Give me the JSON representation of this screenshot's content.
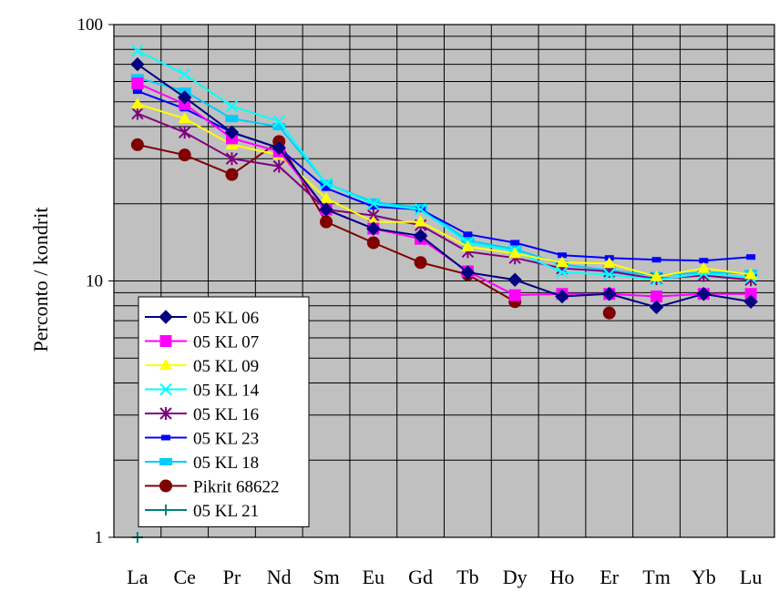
{
  "chart_data": {
    "type": "line",
    "title": "",
    "xlabel": "",
    "ylabel": "Perconto / kondrit",
    "yscale": "log",
    "ylim": [
      1,
      100
    ],
    "yticks": [
      "1",
      "10",
      "100"
    ],
    "grid": true,
    "plot_background": "#c0c0c0",
    "legend_position": "bottom-left",
    "categories": [
      "La",
      "Ce",
      "Pr",
      "Nd",
      "Sm",
      "Eu",
      "Gd",
      "Tb",
      "Dy",
      "Ho",
      "Er",
      "Tm",
      "Yb",
      "Lu"
    ],
    "series": [
      {
        "name": "05 KL 06",
        "color": "#000080",
        "marker": "diamond",
        "values": [
          70,
          52,
          38,
          33,
          19,
          16,
          15,
          10.8,
          10.1,
          8.7,
          8.9,
          7.9,
          8.9,
          8.3
        ]
      },
      {
        "name": "05 KL 07",
        "color": "#ff00ff",
        "marker": "square",
        "values": [
          59,
          49,
          36,
          32,
          19,
          16,
          14.6,
          10.9,
          8.8,
          8.9,
          8.9,
          8.7,
          8.9,
          8.9
        ]
      },
      {
        "name": "05 KL 09",
        "color": "#ffff00",
        "marker": "triangle",
        "values": [
          49,
          43,
          34,
          31,
          21,
          17,
          17,
          13.6,
          12.8,
          11.8,
          11.7,
          10.4,
          11.2,
          10.6
        ]
      },
      {
        "name": "05 KL 14",
        "color": "#00ffff",
        "marker": "x",
        "values": [
          79,
          64,
          48,
          42,
          24,
          20,
          19,
          14.1,
          13.1,
          10.8,
          10.6,
          10.1,
          10.7,
          10.3
        ]
      },
      {
        "name": "05 KL 16",
        "color": "#800080",
        "marker": "asterisk",
        "values": [
          45,
          38,
          30,
          28,
          19,
          18,
          16.5,
          13,
          12.3,
          11.2,
          10.9,
          10.2,
          10.5,
          10.1
        ]
      },
      {
        "name": "05 KL 23",
        "color": "#0000ff",
        "marker": "dash",
        "values": [
          55,
          47,
          38,
          33,
          23,
          19.5,
          19,
          15.2,
          14.1,
          12.6,
          12.3,
          12.1,
          12.0,
          12.4
        ]
      },
      {
        "name": "05 KL 18",
        "color": "#00ccff",
        "marker": "rect",
        "values": [
          62,
          55,
          43,
          40,
          24,
          20.3,
          19.3,
          14.4,
          13.3,
          11.6,
          11.0,
          10.5,
          10.8,
          10.7
        ]
      },
      {
        "name": "Pikrit 68622",
        "color": "#800000",
        "marker": "circle",
        "values": [
          34,
          31,
          26,
          35,
          17,
          14.1,
          11.8,
          10.6,
          8.3,
          null,
          7.5,
          null,
          null,
          null
        ]
      },
      {
        "name": "05 KL 21",
        "color": "#008080",
        "marker": "plus",
        "values": [
          1.0,
          null,
          null,
          null,
          null,
          null,
          null,
          null,
          null,
          null,
          null,
          null,
          null,
          null
        ]
      }
    ]
  }
}
